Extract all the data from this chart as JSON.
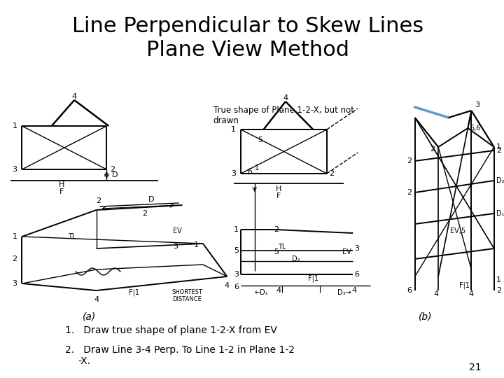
{
  "title_line1": "Line Perpendicular to Skew Lines",
  "title_line2": "Plane View Method",
  "title_fontsize": 22,
  "bg_color": "#ffffff",
  "annotation_text": "True shape of Plane 1-2-X, but not\ndrawn",
  "label_a": "(a)",
  "label_b": "(b)",
  "page_num": "21",
  "bullet1": "1.   Draw true shape of plane 1-2-X from EV",
  "bullet2": "2.   Draw Line 3-4 Perp. To Line 1-2 in Plane 1-2\n          -X."
}
